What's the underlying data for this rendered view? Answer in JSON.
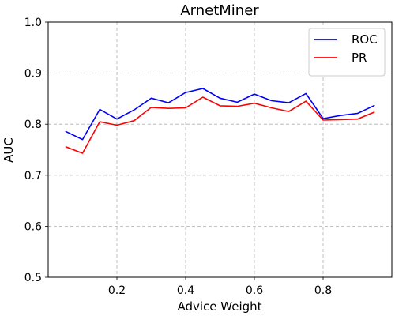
{
  "chart_data": {
    "type": "line",
    "title": "ArnetMiner",
    "xlabel": "Advice Weight",
    "ylabel": "AUC",
    "xlim": [
      0.0,
      1.0
    ],
    "ylim": [
      0.5,
      1.0
    ],
    "x_ticks": [
      0.2,
      0.4,
      0.6,
      0.8
    ],
    "x_tick_labels": [
      "0.2",
      "0.4",
      "0.6",
      "0.8"
    ],
    "y_ticks": [
      0.5,
      0.6,
      0.7,
      0.8,
      0.9,
      1.0
    ],
    "y_tick_labels": [
      "0.5",
      "0.6",
      "0.7",
      "0.8",
      "0.9",
      "1.0"
    ],
    "grid": true,
    "legend_position": "top-right",
    "x": [
      0.05,
      0.1,
      0.15,
      0.2,
      0.25,
      0.3,
      0.35,
      0.4,
      0.45,
      0.5,
      0.55,
      0.6,
      0.65,
      0.7,
      0.75,
      0.8,
      0.85,
      0.9,
      0.95
    ],
    "series": [
      {
        "name": "ROC",
        "color": "#0000ff",
        "values": [
          0.786,
          0.77,
          0.829,
          0.81,
          0.828,
          0.851,
          0.842,
          0.862,
          0.87,
          0.851,
          0.843,
          0.859,
          0.846,
          0.842,
          0.86,
          0.811,
          0.817,
          0.821,
          0.837
        ]
      },
      {
        "name": "PR",
        "color": "#ff0000",
        "values": [
          0.756,
          0.743,
          0.805,
          0.798,
          0.807,
          0.833,
          0.831,
          0.832,
          0.853,
          0.836,
          0.835,
          0.841,
          0.832,
          0.825,
          0.845,
          0.808,
          0.809,
          0.81,
          0.824
        ]
      }
    ]
  }
}
